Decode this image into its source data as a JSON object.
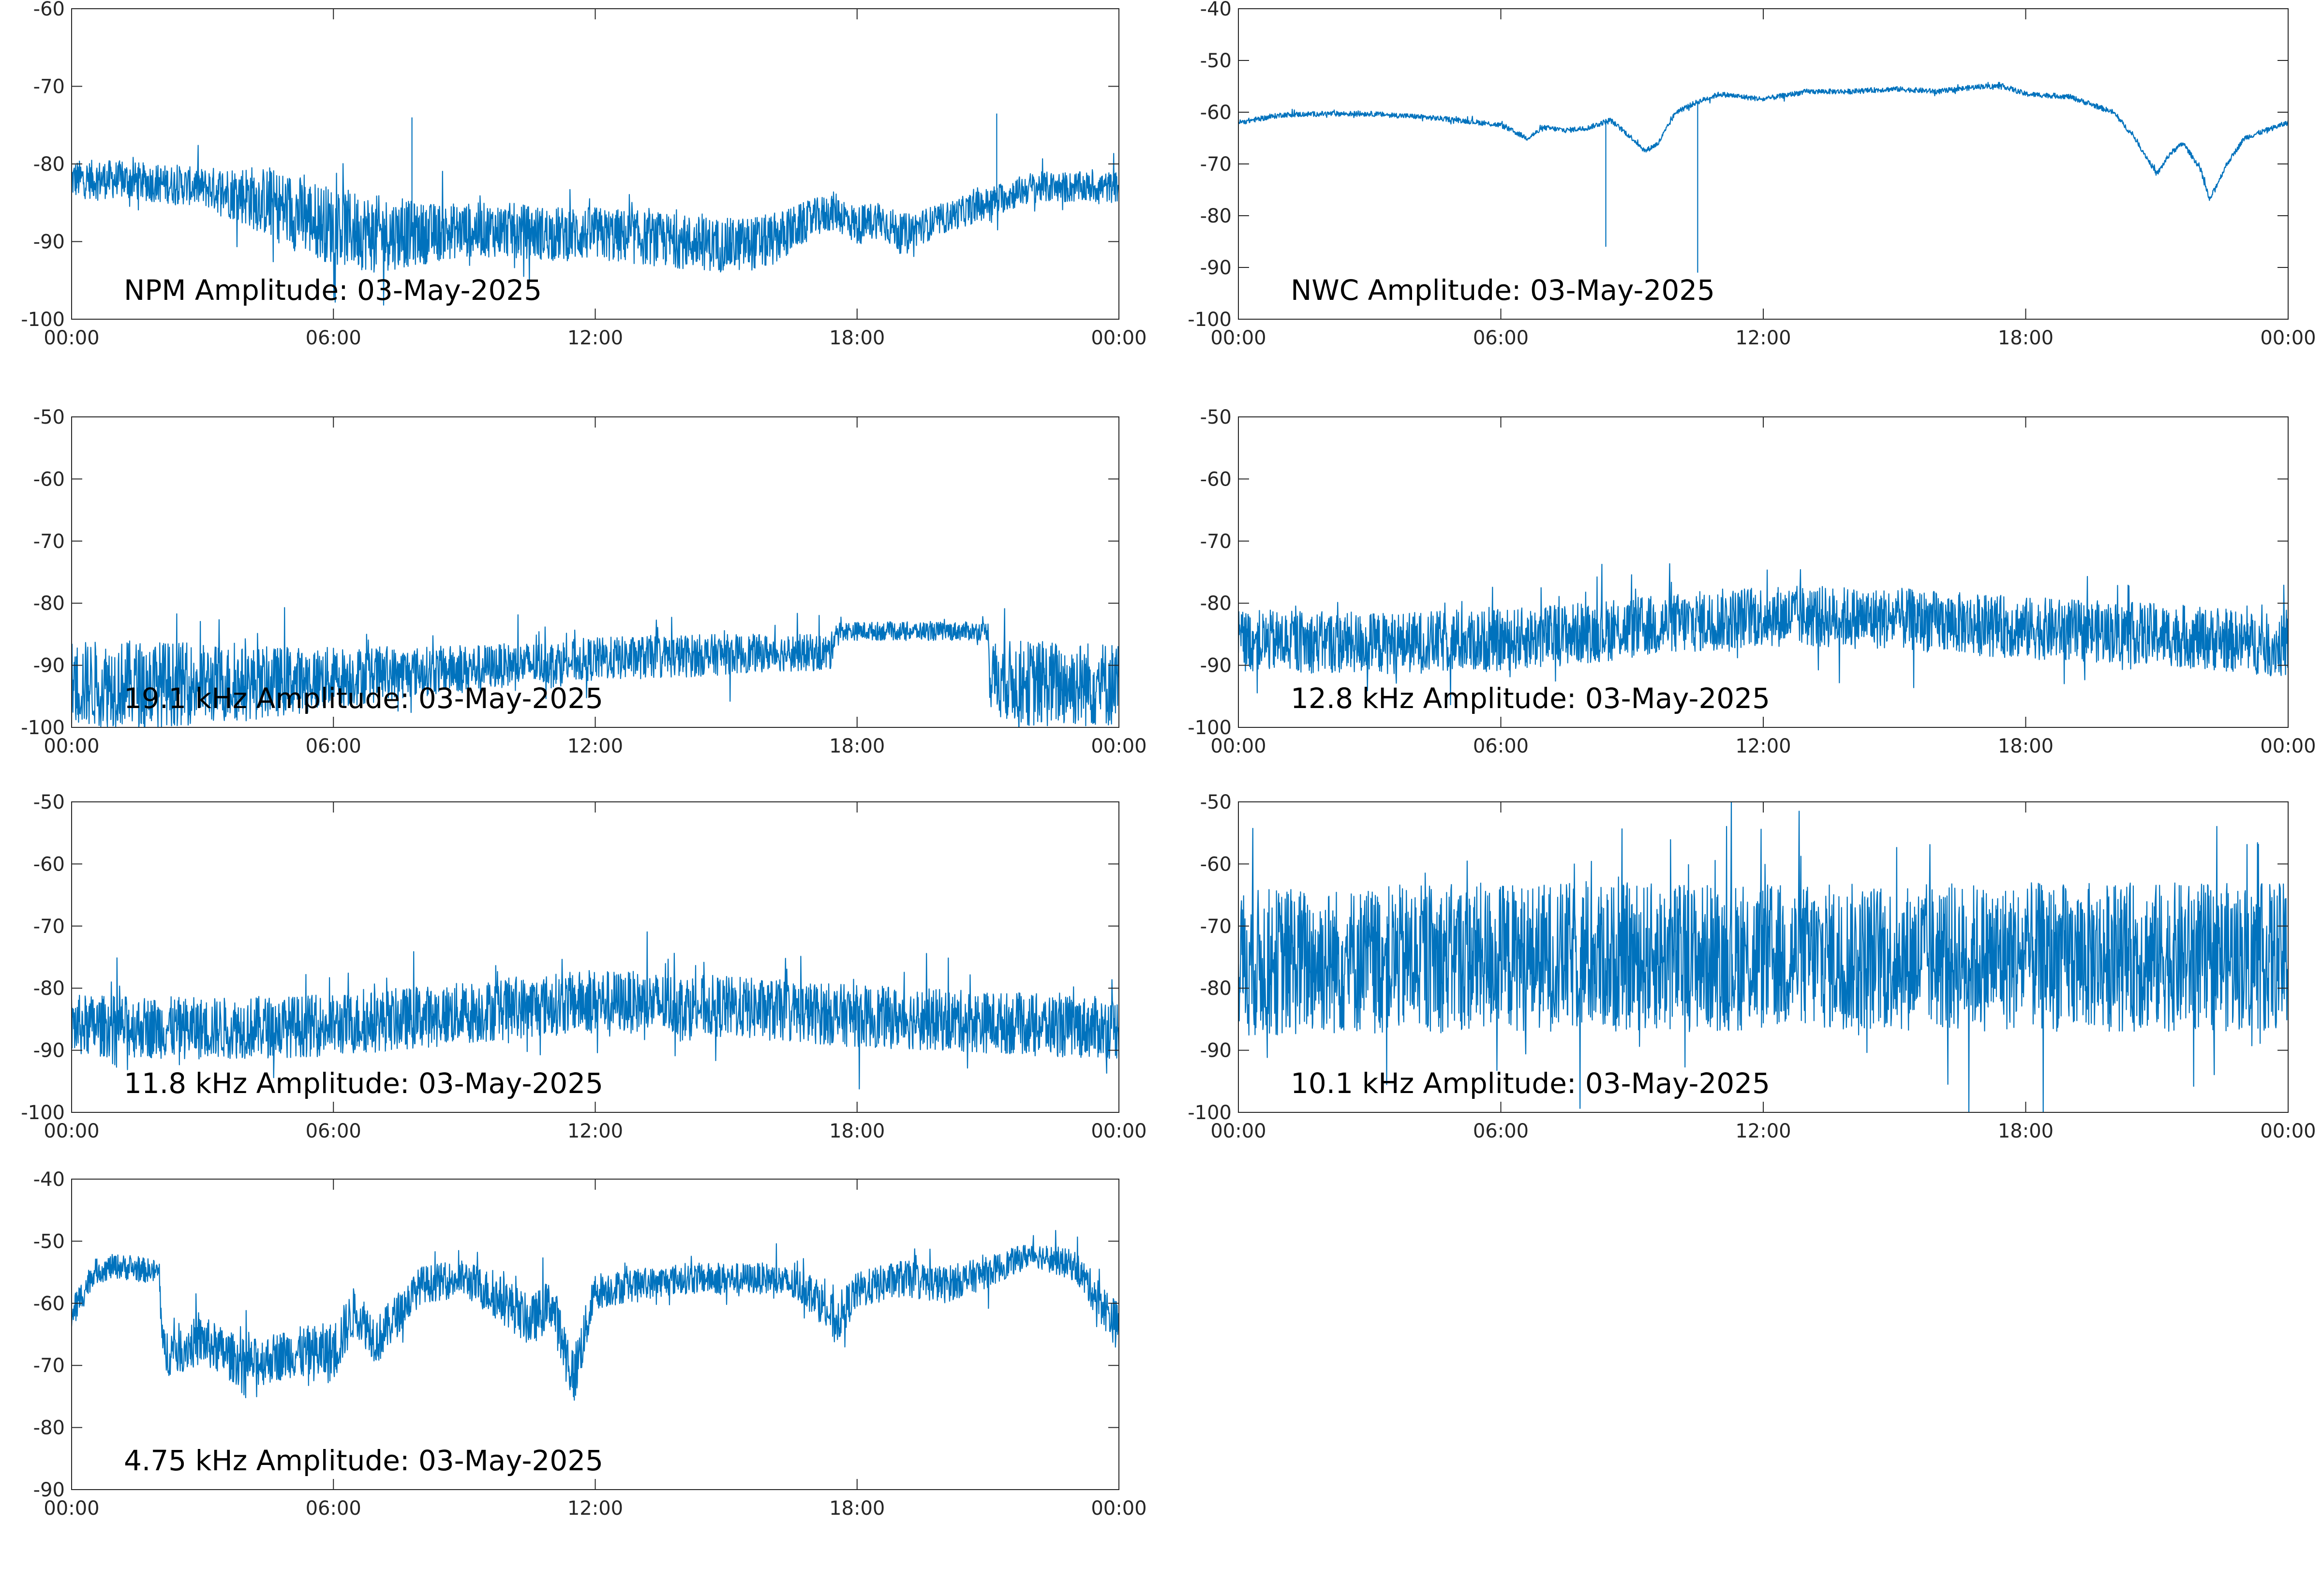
{
  "figure": {
    "background": "#ffffff",
    "series_color": "#0072bd"
  },
  "chart_data": [
    {
      "type": "line",
      "title": "NPM Amplitude: 03-May-2025",
      "xlim": [
        "00:00",
        "00:00"
      ],
      "xticks": [
        "00:00",
        "06:00",
        "12:00",
        "18:00",
        "00:00"
      ],
      "ylim": [
        -100,
        -60
      ],
      "yticks": [
        -60,
        -70,
        -80,
        -90,
        -100
      ],
      "series": [
        {
          "color": "#0072bd",
          "x_hours": [
            0,
            1,
            2,
            3,
            4,
            5,
            6,
            7,
            8,
            9,
            10,
            11,
            12,
            13,
            14,
            15,
            16,
            17,
            17.5,
            18,
            18.5,
            19,
            20,
            21,
            22,
            23,
            24
          ],
          "values": [
            -82,
            -82,
            -82.5,
            -83,
            -84,
            -86,
            -88,
            -89,
            -89,
            -88.5,
            -88.5,
            -89,
            -89,
            -89.5,
            -90,
            -90.5,
            -90,
            -87,
            -86,
            -88,
            -87,
            -89,
            -87,
            -85,
            -83,
            -83,
            -83
          ],
          "noise_amplitude": [
            2.5,
            2.5,
            2.5,
            2.5,
            4,
            5,
            5,
            5,
            4,
            3.5,
            3.5,
            3.5,
            3.5,
            3.5,
            3.5,
            3.5,
            3.5,
            2.5,
            2.5,
            2.5,
            2.5,
            2.5,
            2,
            2,
            2,
            2,
            2
          ],
          "spikes": [
            {
              "x_hours": 7.8,
              "value": -74
            },
            {
              "x_hours": 21.2,
              "value": -73.5
            }
          ]
        }
      ]
    },
    {
      "type": "line",
      "title": "NWC Amplitude: 03-May-2025",
      "xlim": [
        "00:00",
        "00:00"
      ],
      "xticks": [
        "00:00",
        "06:00",
        "12:00",
        "18:00",
        "00:00"
      ],
      "ylim": [
        -100,
        -40
      ],
      "yticks": [
        -40,
        -50,
        -60,
        -70,
        -80,
        -90,
        -100
      ],
      "series": [
        {
          "color": "#0072bd",
          "x_hours": [
            0,
            1,
            2,
            3,
            4,
            5,
            6,
            6.6,
            7,
            7.5,
            8,
            8.5,
            9,
            9.3,
            9.6,
            10,
            10.5,
            11,
            12,
            13,
            14,
            15,
            16,
            17,
            17.5,
            18,
            19,
            20,
            20.5,
            21,
            21.3,
            21.6,
            22,
            22.2,
            22.6,
            23,
            24
          ],
          "values": [
            -62,
            -60.5,
            -60.3,
            -60.3,
            -60.8,
            -61.5,
            -62.5,
            -65,
            -63,
            -63.5,
            -63,
            -61.5,
            -65,
            -67.5,
            -66,
            -60,
            -58,
            -56.5,
            -57.5,
            -56,
            -56,
            -55.5,
            -56,
            -55,
            -55,
            -56.5,
            -57,
            -60,
            -65,
            -72,
            -68,
            -66,
            -71,
            -77,
            -70,
            -65,
            -62
          ],
          "noise_amplitude": [
            0.5
          ],
          "spikes": [
            {
              "x_hours": 8.4,
              "value": -86
            },
            {
              "x_hours": 10.5,
              "value": -91
            }
          ]
        }
      ]
    },
    {
      "type": "line",
      "title": "19.1 kHz Amplitude: 03-May-2025",
      "xlim": [
        "00:00",
        "00:00"
      ],
      "xticks": [
        "00:00",
        "06:00",
        "12:00",
        "18:00",
        "00:00"
      ],
      "ylim": [
        -100,
        -50
      ],
      "yticks": [
        -50,
        -60,
        -70,
        -80,
        -90,
        -100
      ],
      "series": [
        {
          "color": "#0072bd",
          "x_hours": [
            0,
            2,
            4,
            6,
            8,
            10,
            12,
            14,
            16,
            17.4,
            17.5,
            19,
            21,
            21.05,
            22,
            24
          ],
          "values": [
            -93,
            -93,
            -93,
            -92,
            -91,
            -90,
            -89,
            -88.5,
            -88,
            -88,
            -84.5,
            -84.5,
            -84.5,
            -92,
            -93,
            -93
          ],
          "noise_amplitude": [
            7,
            7,
            6,
            5,
            4,
            3.5,
            3.5,
            3.5,
            3,
            3,
            1.5,
            1.5,
            1.5,
            6,
            7,
            7
          ],
          "spikes": []
        }
      ]
    },
    {
      "type": "line",
      "title": "12.8 kHz Amplitude: 03-May-2025",
      "xlim": [
        "00:00",
        "00:00"
      ],
      "xticks": [
        "00:00",
        "06:00",
        "12:00",
        "18:00",
        "00:00"
      ],
      "ylim": [
        -100,
        -50
      ],
      "yticks": [
        -50,
        -60,
        -70,
        -80,
        -90,
        -100
      ],
      "series": [
        {
          "color": "#0072bd",
          "x_hours": [
            0,
            3,
            6,
            9,
            12,
            15,
            18,
            21,
            24
          ],
          "values": [
            -86,
            -86.5,
            -86,
            -84,
            -82,
            -82.5,
            -84,
            -85,
            -87
          ],
          "noise_amplitude": [
            5
          ],
          "spikes": []
        }
      ]
    },
    {
      "type": "line",
      "title": "11.8 kHz Amplitude: 03-May-2025",
      "xlim": [
        "00:00",
        "00:00"
      ],
      "xticks": [
        "00:00",
        "06:00",
        "12:00",
        "18:00",
        "00:00"
      ],
      "ylim": [
        -100,
        -50
      ],
      "yticks": [
        -50,
        -60,
        -70,
        -80,
        -90,
        -100
      ],
      "series": [
        {
          "color": "#0072bd",
          "x_hours": [
            0,
            3,
            6,
            9,
            12,
            15,
            18,
            21,
            24
          ],
          "values": [
            -86,
            -86.5,
            -86,
            -84,
            -82,
            -83,
            -84.5,
            -85.5,
            -86.5
          ],
          "noise_amplitude": [
            5
          ],
          "spikes": []
        }
      ]
    },
    {
      "type": "line",
      "title": "10.1 kHz Amplitude: 03-May-2025",
      "xlim": [
        "00:00",
        "00:00"
      ],
      "xticks": [
        "00:00",
        "06:00",
        "12:00",
        "18:00",
        "00:00"
      ],
      "ylim": [
        -100,
        -50
      ],
      "yticks": [
        -50,
        -60,
        -70,
        -80,
        -90,
        -100
      ],
      "series": [
        {
          "color": "#0072bd",
          "x_hours": [
            0,
            6,
            12,
            18,
            24
          ],
          "values": [
            -76,
            -75,
            -75,
            -75,
            -75
          ],
          "noise_amplitude": [
            12
          ],
          "spikes": []
        }
      ]
    },
    {
      "type": "line",
      "title": "4.75 kHz Amplitude: 03-May-2025",
      "xlim": [
        "00:00",
        "00:00"
      ],
      "xticks": [
        "00:00",
        "06:00",
        "12:00",
        "18:00",
        "00:00"
      ],
      "ylim": [
        -90,
        -40
      ],
      "yticks": [
        -40,
        -50,
        -60,
        -70,
        -80,
        -90
      ],
      "series": [
        {
          "color": "#0072bd",
          "x_hours": [
            0,
            0.5,
            1,
            2,
            2.1,
            3,
            4,
            5,
            6,
            6.5,
            7,
            8,
            9,
            10,
            10.5,
            11,
            11.5,
            12,
            13,
            14,
            15,
            16,
            17,
            17.5,
            18,
            19,
            20,
            21,
            22,
            23,
            24
          ],
          "values": [
            -62,
            -55,
            -54,
            -55,
            -68,
            -66,
            -70,
            -68,
            -68,
            -61,
            -66,
            -57,
            -56,
            -60,
            -63,
            -60,
            -72,
            -58,
            -57,
            -56,
            -56,
            -56,
            -58,
            -63,
            -58,
            -56,
            -57,
            -55,
            -52,
            -54,
            -64
          ],
          "noise_amplitude": [
            3,
            2,
            2,
            2,
            4,
            4,
            4,
            4,
            5,
            4,
            4,
            3,
            3,
            4,
            4,
            4,
            5,
            3,
            2.5,
            2.5,
            2.5,
            2.5,
            3,
            4,
            3,
            3,
            3,
            2.5,
            2,
            2.5,
            4
          ],
          "spikes": []
        }
      ]
    }
  ]
}
